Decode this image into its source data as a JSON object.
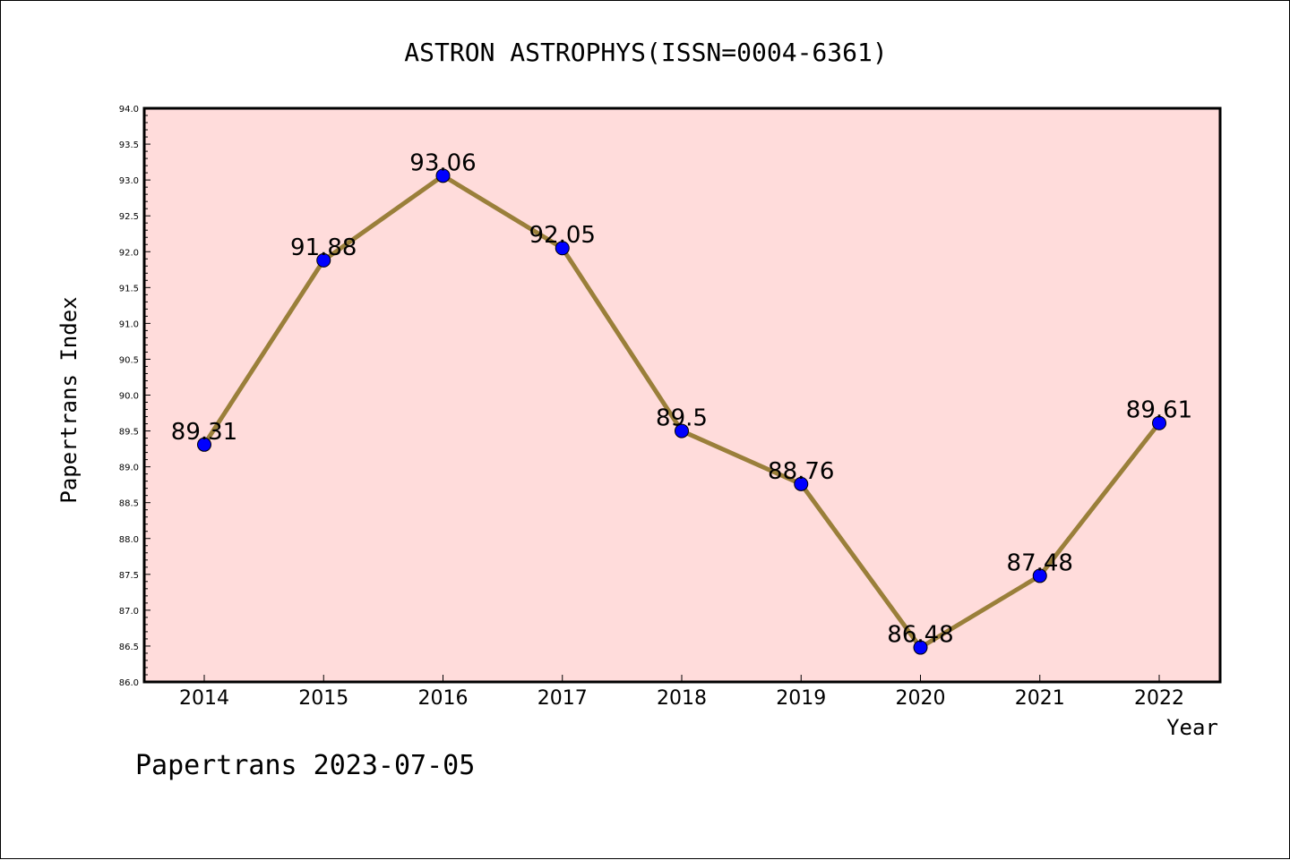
{
  "chart_data": {
    "type": "line",
    "title": "ASTRON ASTROPHYS(ISSN=0004-6361)",
    "xlabel": "Year",
    "ylabel": "Papertrans Index",
    "categories": [
      "2014",
      "2015",
      "2016",
      "2017",
      "2018",
      "2019",
      "2020",
      "2021",
      "2022"
    ],
    "values": [
      89.31,
      91.88,
      93.06,
      92.05,
      89.5,
      88.76,
      86.48,
      87.48,
      89.61
    ],
    "data_labels": [
      "89.31",
      "91.88",
      "93.06",
      "92.05",
      "89.5",
      "88.76",
      "86.48",
      "87.48",
      "89.61"
    ],
    "ylim": [
      86.0,
      94.0
    ],
    "yticks": [
      "86.0",
      "86.5",
      "87.0",
      "87.5",
      "88.0",
      "88.5",
      "89.0",
      "89.5",
      "90.0",
      "90.5",
      "91.0",
      "91.5",
      "92.0",
      "92.5",
      "93.0",
      "93.5",
      "94.0"
    ],
    "grid": false,
    "colors": {
      "plot_background": "#ffdcdb",
      "line": "#9a7f3a",
      "marker": "#0000ff"
    }
  },
  "footer": "Papertrans 2023-07-05"
}
